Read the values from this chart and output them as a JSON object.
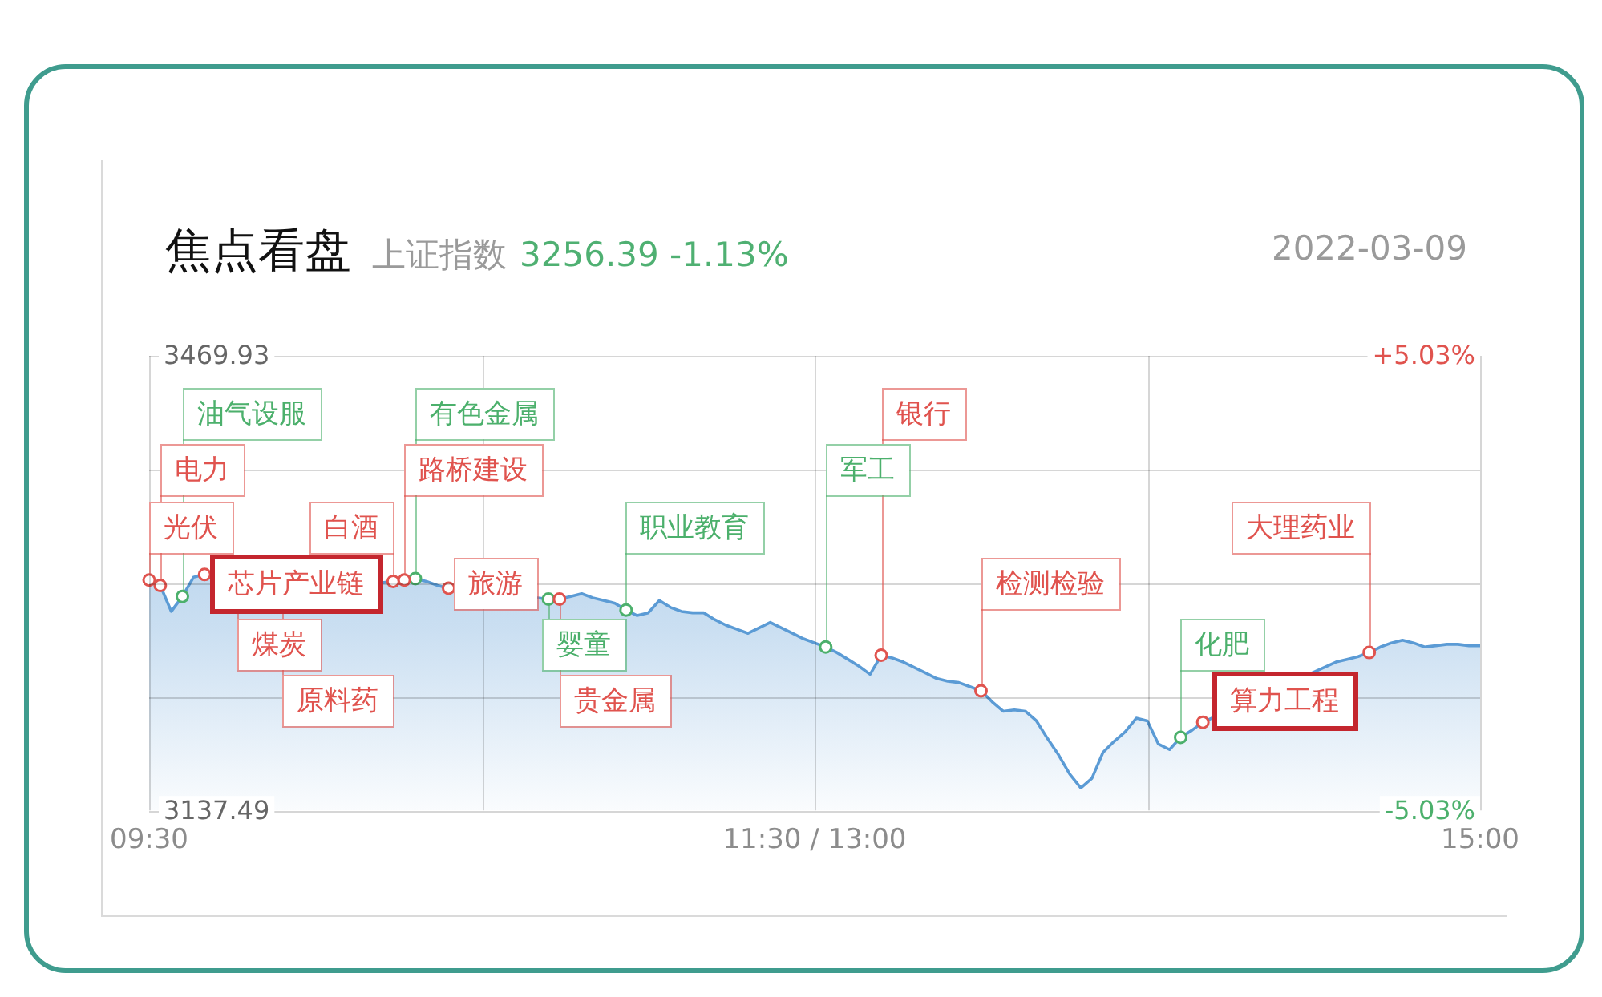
{
  "chart_data": {
    "type": "area",
    "title": "焦点看盘",
    "subtitle": "上证指数",
    "annotations": [
      "3256.39 -1.13%",
      "2022-03-09"
    ],
    "categories": [
      "09:30",
      null,
      null,
      null,
      null,
      null,
      null,
      null,
      null,
      null,
      null,
      null,
      null,
      null,
      null,
      null,
      null,
      null,
      null,
      null,
      null,
      null,
      null,
      null,
      null,
      null,
      null,
      null,
      null,
      null,
      null,
      null,
      null,
      null,
      null,
      null,
      null,
      null,
      null,
      null,
      null,
      null,
      null,
      null,
      null,
      null,
      null,
      null,
      null,
      null,
      null,
      null,
      null,
      null,
      null,
      null,
      null,
      null,
      null,
      null,
      "11:30 / 13:00",
      null,
      null,
      null,
      null,
      null,
      null,
      null,
      null,
      null,
      null,
      null,
      null,
      null,
      null,
      null,
      null,
      null,
      null,
      null,
      null,
      null,
      null,
      null,
      null,
      null,
      null,
      null,
      null,
      null,
      null,
      null,
      null,
      null,
      null,
      null,
      null,
      null,
      null,
      null,
      null,
      null,
      null,
      null,
      null,
      null,
      null,
      null,
      null,
      null,
      null,
      null,
      null,
      null,
      null,
      null,
      null,
      null,
      null,
      null,
      "15:00"
    ],
    "ylim": [
      3137.49,
      3469.93
    ],
    "yticks": [
      3137.49,
      {
        "value": 3220.6,
        "label": null
      },
      {
        "value": 3303.71,
        "label": null
      },
      {
        "value": 3386.82,
        "label": null
      },
      3469.93
    ],
    "y2lim": [
      -5.03,
      5.03
    ],
    "y2ticks": [
      {
        "value": -5.03,
        "label": "-5.03%"
      },
      {
        "value": 5.03,
        "label": "+5.03%"
      }
    ],
    "grid": true,
    "series": [
      {
        "color": "#5b9bd5",
        "values": [
          3306,
          3302,
          3283,
          3294,
          3308,
          3310,
          null,
          null,
          null,
          null,
          null,
          null,
          null,
          null,
          null,
          null,
          null,
          null,
          null,
          null,
          null,
          3304,
          3305,
          3306,
          3307,
          3305,
          3302,
          3300,
          null,
          null,
          null,
          null,
          null,
          null,
          null,
          null,
          3292,
          3292,
          3294,
          3296,
          3293,
          3291,
          3289,
          3284,
          3280,
          3282,
          3291,
          3286,
          3283,
          3282,
          3282,
          3277,
          3273,
          3270,
          3267,
          3271,
          3275,
          3271,
          3267,
          3263,
          3260,
          3257,
          3253,
          3248,
          3243,
          3237,
          3251,
          3249,
          3246,
          3242,
          3238,
          3234,
          3232,
          3231,
          3228,
          3225,
          3217,
          3210,
          3211,
          3210,
          3203,
          3190,
          3178,
          3164,
          3154,
          3161,
          3180,
          3188,
          3195,
          3205,
          3203,
          3186,
          3182,
          3191,
          3196,
          3202,
          null,
          null,
          null,
          null,
          null,
          null,
          null,
          null,
          null,
          null,
          null,
          3246,
          3248,
          3250,
          3253,
          3257,
          3260,
          3262,
          3260,
          3257,
          3258,
          3259,
          3259,
          3258,
          3258
        ]
      },
      {
        "type": "scatter",
        "color": "#e0534e",
        "marker": "circle",
        "values": [
          3306,
          3302,
          null,
          null,
          null,
          3310,
          null,
          null,
          null,
          null,
          null,
          null,
          null,
          null,
          null,
          null,
          null,
          null,
          null,
          null,
          null,
          null,
          3305,
          3306,
          null,
          null,
          null,
          3300,
          null,
          null,
          null,
          null,
          null,
          null,
          null,
          null,
          null,
          3292,
          null,
          null,
          null,
          null,
          null,
          null,
          null,
          null,
          null,
          null,
          null,
          null,
          null,
          null,
          null,
          null,
          null,
          null,
          null,
          null,
          null,
          null,
          null,
          null,
          null,
          null,
          null,
          null,
          3251,
          null,
          null,
          null,
          null,
          null,
          null,
          null,
          null,
          3225,
          null,
          null,
          null,
          null,
          null,
          null,
          null,
          null,
          null,
          null,
          null,
          null,
          null,
          null,
          null,
          null,
          null,
          null,
          null,
          3202,
          null,
          null,
          null,
          null,
          null,
          null,
          null,
          null,
          null,
          null,
          null,
          null,
          null,
          null,
          3253,
          null,
          null,
          null,
          null,
          null,
          null,
          null,
          null,
          null,
          null
        ],
        "value_labels": [
          "光伏",
          "电力",
          null,
          null,
          null,
          "芯片产业链",
          null,
          null,
          "煤炭",
          null,
          null,
          null,
          "原料药",
          null,
          null,
          null,
          null,
          null,
          null,
          null,
          null,
          null,
          "白酒",
          "路桥建设",
          null,
          null,
          null,
          "旅游",
          null,
          null,
          null,
          null,
          null,
          null,
          null,
          null,
          null,
          "贵金属",
          null,
          null,
          null,
          null,
          null,
          null,
          null,
          null,
          null,
          null,
          null,
          null,
          null,
          null,
          null,
          null,
          null,
          null,
          null,
          null,
          null,
          null,
          null,
          null,
          null,
          null,
          null,
          null,
          "银行",
          null,
          null,
          null,
          null,
          null,
          null,
          null,
          null,
          "检测检验",
          null,
          null,
          null,
          null,
          null,
          null,
          null,
          null,
          null,
          null,
          null,
          null,
          null,
          null,
          null,
          null,
          null,
          null,
          null,
          "算力工程",
          null,
          null,
          null,
          null,
          null,
          null,
          null,
          null,
          null,
          null,
          null,
          null,
          null,
          null,
          "大理药业",
          null,
          null,
          null,
          null,
          null,
          null,
          null,
          null,
          null,
          null
        ]
      },
      {
        "type": "scatter",
        "color": "#4cb06c",
        "marker": "circle",
        "values": [
          null,
          null,
          null,
          3294,
          null,
          null,
          null,
          null,
          null,
          null,
          null,
          null,
          null,
          null,
          null,
          null,
          null,
          null,
          null,
          null,
          null,
          null,
          null,
          null,
          3307,
          null,
          null,
          null,
          null,
          null,
          null,
          null,
          null,
          null,
          null,
          null,
          3292,
          null,
          null,
          null,
          null,
          null,
          null,
          3284,
          null,
          null,
          null,
          null,
          null,
          null,
          null,
          null,
          null,
          null,
          null,
          null,
          null,
          null,
          null,
          null,
          null,
          3257,
          null,
          null,
          null,
          null,
          null,
          null,
          null,
          null,
          null,
          null,
          null,
          null,
          null,
          null,
          null,
          null,
          null,
          null,
          null,
          null,
          null,
          null,
          null,
          null,
          null,
          null,
          null,
          null,
          null,
          null,
          null,
          3191,
          null,
          null,
          null,
          null,
          null,
          null,
          null,
          null,
          null,
          null,
          null,
          null,
          null,
          null,
          null,
          null,
          null,
          null,
          null,
          null,
          null,
          null,
          null,
          null,
          null,
          null,
          null
        ],
        "value_labels": [
          null,
          null,
          null,
          "油气设服",
          null,
          null,
          null,
          null,
          null,
          null,
          null,
          null,
          null,
          null,
          null,
          null,
          null,
          null,
          null,
          null,
          null,
          null,
          null,
          null,
          "有色金属",
          null,
          null,
          null,
          null,
          null,
          null,
          null,
          null,
          null,
          null,
          null,
          "婴童",
          null,
          null,
          null,
          null,
          null,
          null,
          "职业教育",
          null,
          null,
          null,
          null,
          null,
          null,
          null,
          null,
          null,
          null,
          null,
          null,
          null,
          null,
          null,
          null,
          null,
          "军工",
          null,
          null,
          null,
          null,
          null,
          null,
          null,
          null,
          null,
          null,
          null,
          null,
          null,
          null,
          null,
          null,
          null,
          null,
          null,
          null,
          null,
          null,
          null,
          null,
          null,
          null,
          null,
          null,
          null,
          null,
          null,
          "化肥",
          null,
          null,
          null,
          null,
          null,
          null,
          null,
          null,
          null,
          null,
          null,
          null,
          null,
          null,
          null,
          null,
          null,
          null,
          null,
          null,
          null,
          null,
          null,
          null,
          null,
          null,
          null
        ]
      }
    ]
  }
}
